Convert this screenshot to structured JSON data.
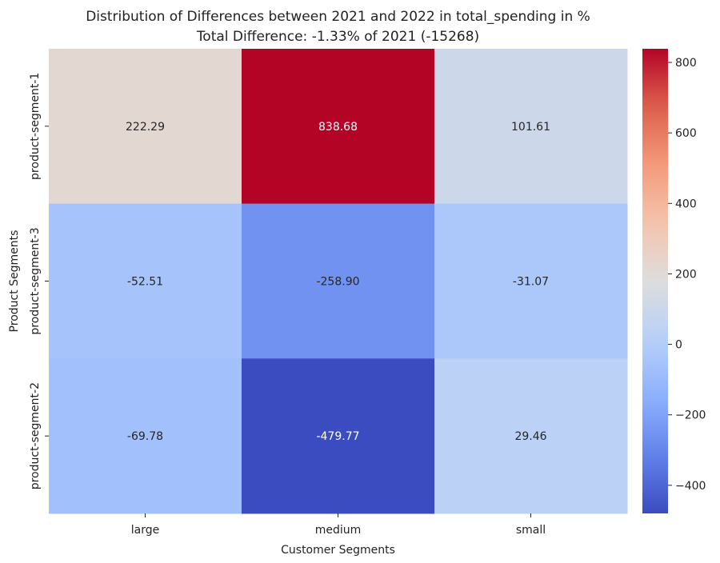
{
  "chart_data": {
    "type": "heatmap",
    "title": "Distribution of Differences between 2021 and 2022 in total_spending in %",
    "subtitle": "Total Difference: -1.33% of 2021 (-15268)",
    "xlabel": "Customer Segments",
    "ylabel": "Product Segments",
    "x_categories": [
      "large",
      "medium",
      "small"
    ],
    "y_categories": [
      "product-segment-1",
      "product-segment-3",
      "product-segment-2"
    ],
    "values": [
      [
        222.29,
        838.68,
        101.61
      ],
      [
        -52.51,
        -258.9,
        -31.07
      ],
      [
        -69.78,
        -479.77,
        29.46
      ]
    ],
    "value_labels": [
      [
        "222.29",
        "838.68",
        "101.61"
      ],
      [
        "-52.51",
        "-258.90",
        "-31.07"
      ],
      [
        "-69.78",
        "-479.77",
        "29.46"
      ]
    ],
    "colormap": "coolwarm",
    "color_range": [
      -479.77,
      838.68
    ],
    "colorbar_ticks": [
      -400,
      -200,
      0,
      200,
      400,
      600,
      800
    ],
    "colorbar_tick_labels": [
      "−400",
      "−200",
      "0",
      "200",
      "400",
      "600",
      "800"
    ]
  }
}
